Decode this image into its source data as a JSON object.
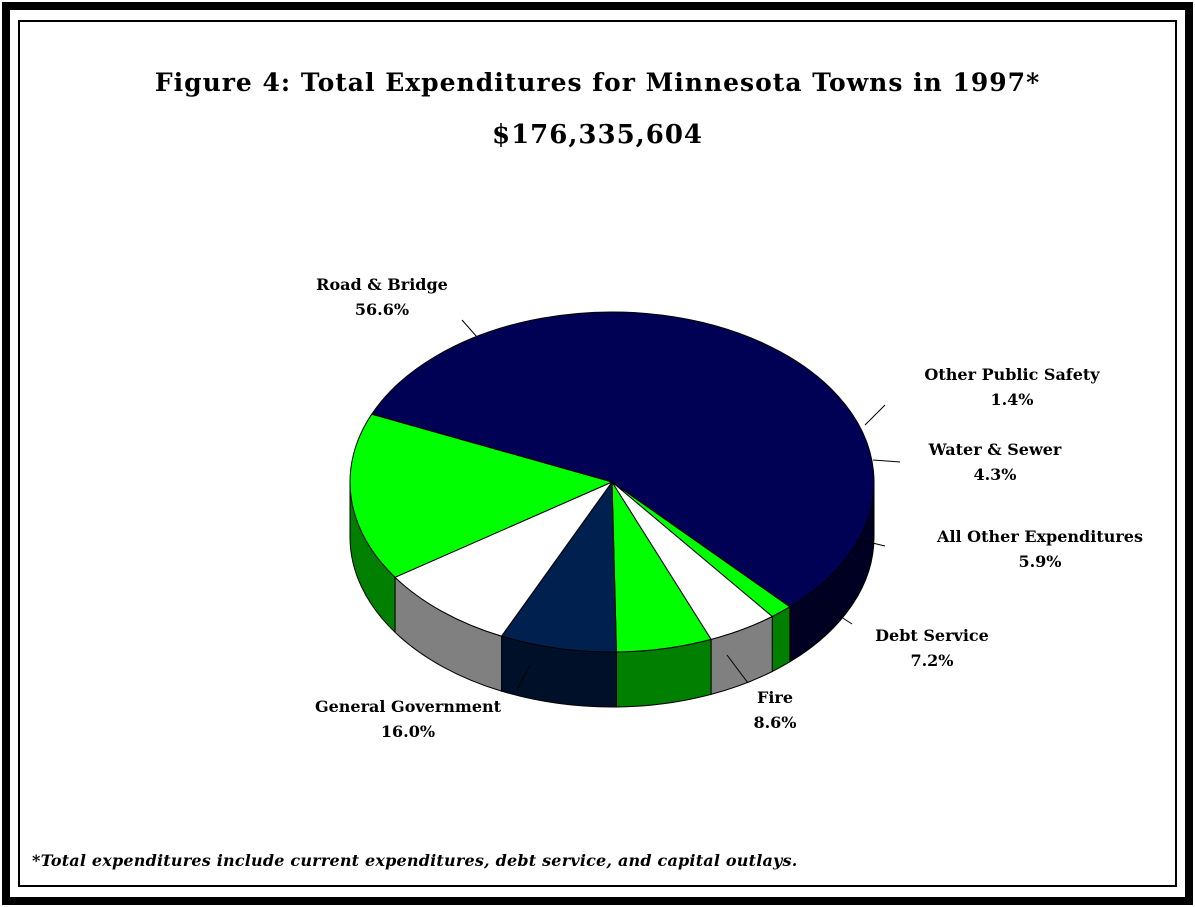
{
  "title": "Figure 4:  Total Expenditures for Minnesota Towns in 1997*",
  "subtitle": "$176,335,604",
  "footnote": "*Total expenditures include current expenditures, debt service, and capital outlays.",
  "chart_data": {
    "type": "pie",
    "three_d": true,
    "slices": [
      {
        "label": "Road & Bridge",
        "percent_label": "56.6%",
        "value": 56.6,
        "color": "#000055",
        "side_color": "#000022"
      },
      {
        "label": "Other Public Safety",
        "percent_label": "1.4%",
        "value": 1.4,
        "color": "#00ff00",
        "side_color": "#007f00"
      },
      {
        "label": "Water & Sewer",
        "percent_label": "4.3%",
        "value": 4.3,
        "color": "#ffffff",
        "side_color": "#808080"
      },
      {
        "label": "All Other Expenditures",
        "percent_label": "5.9%",
        "value": 5.9,
        "color": "#00ff00",
        "side_color": "#007f00"
      },
      {
        "label": "Debt Service",
        "percent_label": "7.2%",
        "value": 7.2,
        "color": "#002050",
        "side_color": "#001028"
      },
      {
        "label": "Fire",
        "percent_label": "8.6%",
        "value": 8.6,
        "color": "#ffffff",
        "side_color": "#808080"
      },
      {
        "label": "General Government",
        "percent_label": "16.0%",
        "value": 16.0,
        "color": "#00ff00",
        "side_color": "#007f00"
      }
    ]
  }
}
